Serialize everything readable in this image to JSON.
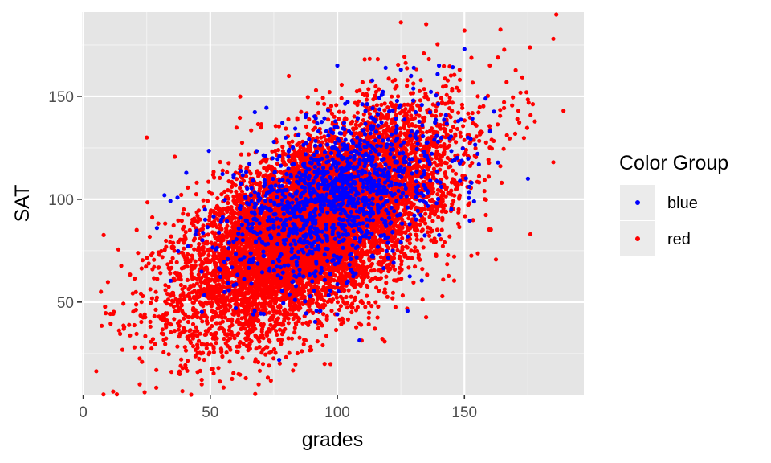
{
  "chart_data": {
    "type": "scatter",
    "xlabel": "grades",
    "ylabel": "SAT",
    "xlim": [
      -0.5,
      197
    ],
    "ylim": [
      5,
      191
    ],
    "x_ticks": [
      0,
      50,
      100,
      150
    ],
    "y_ticks": [
      50,
      100,
      150
    ],
    "grid": true,
    "background": "#e5e5e5",
    "legend": {
      "title": "Color Group",
      "placement": "right",
      "entries": [
        {
          "label": "blue",
          "color": "#0000ff"
        },
        {
          "label": "red",
          "color": "#ff0000"
        }
      ]
    },
    "series": [
      {
        "name": "red",
        "color": "#ff0000",
        "distribution": {
          "x_mean": 92,
          "x_sd": 26,
          "y_mean": 88,
          "y_sd": 26,
          "correlation": 0.6,
          "n": 9000
        },
        "points": [
          {
            "x": 7,
            "y": 55
          },
          {
            "x": 25,
            "y": 130
          },
          {
            "x": 16,
            "y": 37
          },
          {
            "x": 38,
            "y": 15
          },
          {
            "x": 185,
            "y": 178
          },
          {
            "x": 189,
            "y": 143
          },
          {
            "x": 176,
            "y": 83
          },
          {
            "x": 125,
            "y": 186
          },
          {
            "x": 150,
            "y": 182
          },
          {
            "x": 95,
            "y": 20
          },
          {
            "x": 185,
            "y": 118
          },
          {
            "x": 45,
            "y": 16
          }
        ]
      },
      {
        "name": "blue",
        "color": "#0000ff",
        "distribution": {
          "x_mean": 100,
          "x_sd": 21,
          "y_mean": 102,
          "y_sd": 21,
          "correlation": 0.45,
          "n": 1300
        },
        "points": [
          {
            "x": 32,
            "y": 102
          },
          {
            "x": 29,
            "y": 86
          },
          {
            "x": 175,
            "y": 110
          },
          {
            "x": 100,
            "y": 165
          },
          {
            "x": 150,
            "y": 173
          },
          {
            "x": 140,
            "y": 165
          },
          {
            "x": 60,
            "y": 47
          },
          {
            "x": 125,
            "y": 163
          }
        ]
      }
    ]
  }
}
